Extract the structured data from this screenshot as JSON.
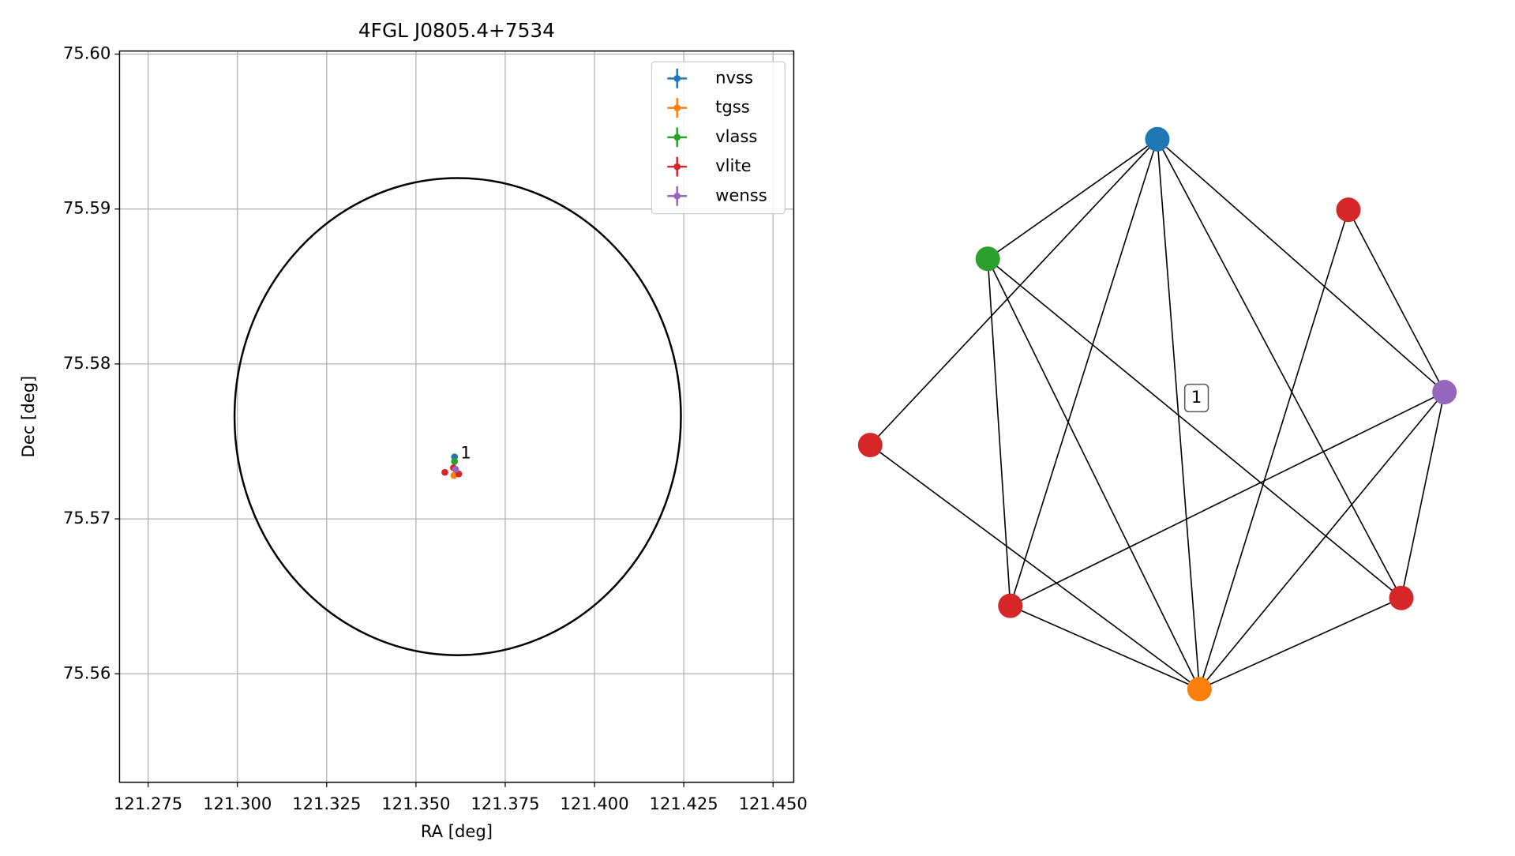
{
  "chart_data": [
    {
      "type": "scatter",
      "title": "4FGL J0805.4+7534",
      "x_label": "RA [deg]",
      "y_label": "Dec [deg]",
      "xlim": [
        121.267,
        121.4558
      ],
      "ylim": [
        75.553,
        75.6002
      ],
      "xticks": [
        121.275,
        {
          "value": 121.3,
          "label": "121.300"
        },
        121.325,
        {
          "value": 121.35,
          "label": "121.350"
        },
        121.375,
        {
          "value": 121.4,
          "label": "121.400"
        },
        121.425,
        {
          "value": 121.45,
          "label": "121.450"
        }
      ],
      "yticks": [
        75.56,
        75.57,
        75.58,
        75.59,
        {
          "value": 75.6,
          "label": "75.60"
        }
      ],
      "grid": true,
      "legend": "upper right",
      "circle": {
        "ra": 121.3617,
        "dec": 75.5766,
        "ra_radius": 0.0625,
        "dec_radius": 0.0154,
        "color": "#000000"
      },
      "series": [
        {
          "name": "nvss",
          "color": "#1f77b4",
          "x": [
            121.3608
          ],
          "values": [
            75.574
          ],
          "xerr": [
            0.0003
          ],
          "yerr": [
            0.0002
          ]
        },
        {
          "name": "tgss",
          "color": "#ff7f0e",
          "x": [
            121.3606
          ],
          "values": [
            75.5728
          ],
          "xerr": [
            0.0004
          ],
          "yerr": [
            0.0002
          ]
        },
        {
          "name": "vlass",
          "color": "#2ca02c",
          "x": [
            121.3608
          ],
          "values": [
            75.5737
          ],
          "xerr": [
            0.0001
          ],
          "yerr": [
            0.0001
          ]
        },
        {
          "name": "vlite",
          "color": "#d62728",
          "x": [
            121.3581,
            121.362,
            121.3605
          ],
          "values": [
            75.573,
            75.5729,
            75.5733
          ],
          "xerr": [
            0.0002,
            0.0002,
            0.0002
          ],
          "yerr": [
            0.0001,
            0.0001,
            0.0001
          ]
        },
        {
          "name": "wenss",
          "color": "#9467bd",
          "x": [
            121.3611
          ],
          "values": [
            75.5732
          ],
          "xerr": [
            0.0002
          ],
          "yerr": [
            0.0001
          ]
        }
      ],
      "annotations": [
        {
          "text": "1",
          "x": 121.3625,
          "y": 75.5742
        }
      ]
    },
    {
      "type": "graph",
      "node_colors": [
        "#1f77b4",
        "#d62728",
        "#9467bd",
        "#d62728",
        "#ff7f0e",
        "#d62728",
        "#d62728",
        "#2ca02c"
      ],
      "edges": [
        [
          0,
          7
        ],
        [
          0,
          6
        ],
        [
          0,
          5
        ],
        [
          0,
          4
        ],
        [
          0,
          3
        ],
        [
          0,
          2
        ],
        [
          7,
          5
        ],
        [
          7,
          4
        ],
        [
          7,
          3
        ],
        [
          1,
          2
        ],
        [
          1,
          4
        ],
        [
          2,
          5
        ],
        [
          2,
          4
        ],
        [
          2,
          3
        ],
        [
          3,
          4
        ],
        [
          4,
          5
        ],
        [
          4,
          6
        ]
      ],
      "label": "1"
    }
  ]
}
